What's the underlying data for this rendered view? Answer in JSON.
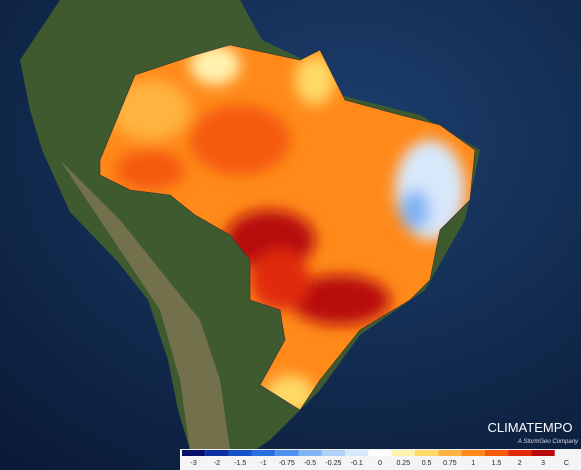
{
  "brand": {
    "name": "CLIMATEMPO",
    "tagline": "A StormGeo Company"
  },
  "legend": {
    "ticks": [
      -3,
      -2,
      -1.5,
      -1,
      -0.75,
      -0.5,
      -0.25,
      -0.1,
      0,
      0.25,
      0.5,
      0.75,
      1,
      1.5,
      2,
      3
    ],
    "colors": [
      "#08106e",
      "#0a2fa0",
      "#1450c8",
      "#2a6fe0",
      "#4f92ee",
      "#7fb3f4",
      "#b0d2f8",
      "#d8e8fb",
      "#ffffff",
      "#fff3b0",
      "#ffd966",
      "#ffb340",
      "#ff8a1a",
      "#f45a0a",
      "#e02a08",
      "#b80a0a"
    ],
    "unit": "C"
  }
}
